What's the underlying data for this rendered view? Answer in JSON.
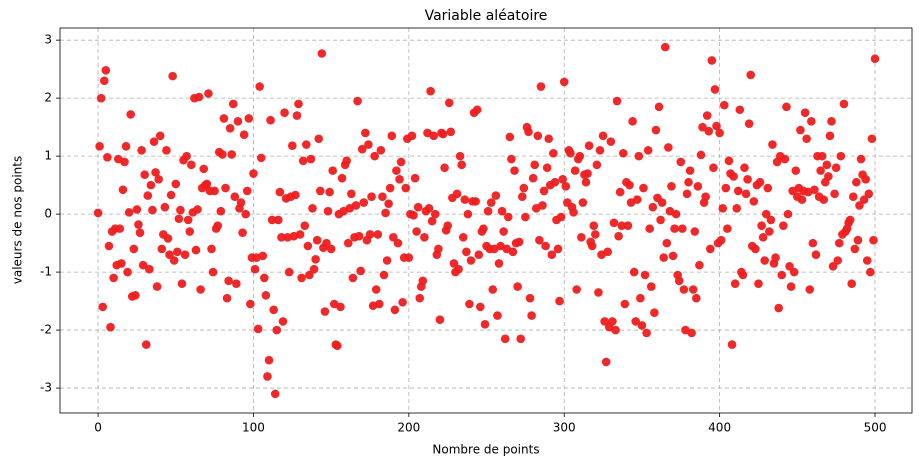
{
  "chart_data": {
    "type": "scatter",
    "title": "Variable aléatoire",
    "x_label": "Nombre de points",
    "y_label": "valeurs de nos points",
    "color": "#ee1d1d",
    "grid": true,
    "xlim": [
      -24.5,
      523.8
    ],
    "ylim": [
      -3.43,
      3.21
    ],
    "xticks": [
      0,
      100,
      200,
      300,
      400,
      500
    ],
    "yticks": [
      -3,
      -2,
      -1,
      0,
      1,
      2,
      3
    ],
    "x": [
      0,
      1,
      2,
      3,
      4,
      5,
      6,
      7,
      8,
      9,
      10,
      11,
      12,
      13,
      14,
      15,
      16,
      17,
      18,
      19,
      20,
      21,
      22,
      23,
      24,
      25,
      26,
      27,
      28,
      29,
      30,
      31,
      32,
      33,
      34,
      35,
      36,
      37,
      38,
      39,
      40,
      41,
      42,
      43,
      44,
      45,
      46,
      47,
      48,
      49,
      50,
      51,
      52,
      53,
      54,
      55,
      56,
      57,
      58,
      59,
      60,
      61,
      62,
      63,
      64,
      65,
      66,
      67,
      68,
      69,
      70,
      71,
      72,
      73,
      74,
      75,
      76,
      77,
      78,
      79,
      80,
      81,
      82,
      83,
      84,
      85,
      86,
      87,
      88,
      89,
      90,
      91,
      92,
      93,
      94,
      95,
      96,
      97,
      98,
      99,
      100,
      101,
      102,
      103,
      104,
      105,
      106,
      107,
      108,
      109,
      110,
      111,
      112,
      113,
      114,
      115,
      116,
      117,
      118,
      119,
      120,
      121,
      122,
      123,
      124,
      125,
      126,
      127,
      128,
      129,
      130,
      131,
      132,
      133,
      134,
      135,
      136,
      137,
      138,
      139,
      140,
      141,
      142,
      143,
      144,
      145,
      146,
      147,
      148,
      149,
      150,
      151,
      152,
      153,
      154,
      155,
      156,
      157,
      158,
      159,
      160,
      161,
      162,
      163,
      164,
      165,
      166,
      167,
      168,
      169,
      170,
      171,
      172,
      173,
      174,
      175,
      176,
      177,
      178,
      179,
      180,
      181,
      182,
      183,
      184,
      185,
      186,
      187,
      188,
      189,
      190,
      191,
      192,
      193,
      194,
      195,
      196,
      197,
      198,
      199,
      200,
      201,
      202,
      203,
      204,
      205,
      206,
      207,
      208,
      209,
      210,
      211,
      212,
      213,
      214,
      215,
      216,
      217,
      218,
      219,
      220,
      221,
      222,
      223,
      224,
      225,
      226,
      227,
      228,
      229,
      230,
      231,
      232,
      233,
      234,
      235,
      236,
      237,
      238,
      239,
      240,
      241,
      242,
      243,
      244,
      245,
      246,
      247,
      248,
      249,
      250,
      251,
      252,
      253,
      254,
      255,
      256,
      257,
      258,
      259,
      260,
      261,
      262,
      263,
      264,
      265,
      266,
      267,
      268,
      269,
      270,
      271,
      272,
      273,
      274,
      275,
      276,
      277,
      278,
      279,
      280,
      281,
      282,
      283,
      284,
      285,
      286,
      287,
      288,
      289,
      290,
      291,
      292,
      293,
      294,
      295,
      296,
      297,
      298,
      299,
      300,
      301,
      302,
      303,
      304,
      305,
      306,
      307,
      308,
      309,
      310,
      311,
      312,
      313,
      314,
      315,
      316,
      317,
      318,
      319,
      320,
      321,
      322,
      323,
      324,
      325,
      326,
      327,
      328,
      329,
      330,
      331,
      332,
      333,
      334,
      335,
      336,
      337,
      338,
      339,
      340,
      341,
      342,
      343,
      344,
      345,
      346,
      347,
      348,
      349,
      350,
      351,
      352,
      353,
      354,
      355,
      356,
      357,
      358,
      359,
      360,
      361,
      362,
      363,
      364,
      365,
      366,
      367,
      368,
      369,
      370,
      371,
      372,
      373,
      374,
      375,
      376,
      377,
      378,
      379,
      380,
      381,
      382,
      383,
      384,
      385,
      386,
      387,
      388,
      389,
      390,
      391,
      392,
      393,
      394,
      395,
      396,
      397,
      398,
      399,
      400,
      401,
      402,
      403,
      404,
      405,
      406,
      407,
      408,
      409,
      410,
      411,
      412,
      413,
      414,
      415,
      416,
      417,
      418,
      419,
      420,
      421,
      422,
      423,
      424,
      425,
      426,
      427,
      428,
      429,
      430,
      431,
      432,
      433,
      434,
      435,
      436,
      437,
      438,
      439,
      440,
      441,
      442,
      443,
      444,
      445,
      446,
      447,
      448,
      449,
      450,
      451,
      452,
      453,
      454,
      455,
      456,
      457,
      458,
      459,
      460,
      461,
      462,
      463,
      464,
      465,
      466,
      467,
      468,
      469,
      470,
      471,
      472,
      473,
      474,
      475,
      476,
      477,
      478,
      479,
      480,
      481,
      482,
      483,
      484,
      485,
      486,
      487,
      488,
      489,
      490,
      491,
      492,
      493,
      494,
      495,
      496,
      497,
      498,
      499,
      500
    ],
    "values": [
      0.02,
      1.17,
      2.0,
      -1.6,
      2.3,
      2.48,
      0.98,
      -0.55,
      -1.95,
      -0.3,
      -1.1,
      -0.25,
      -0.88,
      0.95,
      -0.25,
      -0.85,
      0.42,
      0.9,
      1.17,
      -1.0,
      0.03,
      1.72,
      -1.42,
      -0.6,
      -1.4,
      0.08,
      -0.18,
      -0.32,
      1.1,
      -0.88,
      0.68,
      -2.25,
      0.32,
      -0.95,
      0.5,
      0.07,
      1.25,
      0.72,
      -1.25,
      0.6,
      1.35,
      -0.6,
      -0.35,
      0.12,
      1.1,
      -0.42,
      -0.7,
      0.33,
      2.38,
      -0.8,
      0.52,
      -0.65,
      -0.08,
      0.07,
      -1.2,
      0.93,
      -0.7,
      1.0,
      -0.1,
      -0.3,
      0.85,
      0.03,
      2.0,
      -0.62,
      0.08,
      2.02,
      -1.3,
      0.45,
      0.78,
      0.5,
      0.52,
      2.08,
      0.4,
      -0.6,
      -1.0,
      0.4,
      -0.25,
      -0.2,
      1.07,
      0.05,
      1.03,
      1.65,
      0.45,
      -1.45,
      -1.15,
      1.48,
      1.03,
      1.9,
      0.3,
      -1.2,
      1.6,
      0.1,
      0.2,
      -0.32,
      1.37,
      0.0,
      0.4,
      1.65,
      -1.55,
      -0.75,
      0.7,
      -0.95,
      -0.75,
      -1.98,
      2.2,
      0.97,
      -0.72,
      -1.1,
      -1.4,
      -2.8,
      -2.52,
      1.62,
      -0.1,
      -1.65,
      -3.1,
      -2.0,
      -0.1,
      0.38,
      -0.4,
      -1.85,
      1.75,
      0.27,
      -0.4,
      -1.0,
      0.3,
      1.18,
      -0.38,
      0.33,
      1.7,
      1.9,
      -0.35,
      -1.1,
      0.92,
      -0.2,
      1.2,
      -0.55,
      -1.05,
      0.95,
      0.1,
      -0.95,
      -0.78,
      -0.45,
      1.3,
      0.4,
      2.77,
      -0.58,
      -1.68,
      -0.5,
      0.05,
      0.38,
      -0.6,
      0.75,
      -1.55,
      -2.25,
      -2.27,
      0.0,
      -1.6,
      0.62,
      0.05,
      0.85,
      0.92,
      -0.5,
      0.1,
      0.35,
      -1.1,
      -0.4,
      0.15,
      1.95,
      -0.38,
      -0.98,
      1.12,
      0.2,
      1.4,
      -0.45,
      1.2,
      -0.35,
      0.3,
      -1.58,
      1.0,
      -1.3,
      -0.35,
      -1.55,
      1.1,
      0.3,
      -1.05,
      0.02,
      -0.8,
      0.18,
      0.45,
      1.35,
      -0.4,
      -1.65,
      0.75,
      -0.5,
      0.6,
      0.9,
      -1.52,
      -0.75,
      0.45,
      1.3,
      -0.75,
      0.0,
      1.35,
      -0.02,
      0.62,
      -0.3,
      0.12,
      -1.45,
      -1.25,
      -1.15,
      -0.4,
      0.05,
      1.4,
      0.1,
      2.12,
      -0.12,
      1.35,
      0.0,
      -0.7,
      -0.6,
      -1.82,
      1.4,
      1.38,
      0.8,
      -0.28,
      -0.2,
      1.92,
      1.42,
      0.28,
      -0.85,
      -1.0,
      0.35,
      -0.95,
      1.0,
      0.85,
      -0.4,
      0.25,
      -0.65,
      0.0,
      -1.55,
      -0.8,
      0.22,
      1.75,
      0.22,
      1.8,
      -0.7,
      -1.6,
      -0.3,
      -0.25,
      -1.9,
      -0.55,
      0.05,
      -0.6,
      0.2,
      -1.3,
      -0.6,
      0.32,
      -1.75,
      -0.85,
      -0.55,
      0.05,
      -0.3,
      -2.15,
      -0.6,
      -0.05,
      1.33,
      0.95,
      -0.65,
      0.75,
      -0.5,
      -1.25,
      -0.48,
      -2.15,
      0.3,
      0.45,
      -0.05,
      1.5,
      1.42,
      -1.45,
      -1.75,
      0.62,
      0.85,
      0.1,
      1.35,
      -0.45,
      2.2,
      0.15,
      0.4,
      -0.55,
      0.8,
      1.3,
      0.5,
      -0.7,
      1.05,
      0.55,
      -0.1,
      -0.6,
      -1.5,
      -0.05,
      0.6,
      2.28,
      0.48,
      0.2,
      1.1,
      1.05,
      0.12,
      0.03,
      0.75,
      -1.3,
      0.95,
      1.0,
      -0.4,
      0.2,
      0.68,
      0.55,
      0.7,
      1.18,
      -0.48,
      -0.55,
      -0.2,
      -0.35,
      0.85,
      -1.35,
      1.1,
      -0.7,
      1.35,
      -1.85,
      -2.55,
      -0.65,
      -1.95,
      1.25,
      -1.85,
      -0.15,
      -2.0,
      1.95,
      -0.38,
      0.38,
      -0.2,
      1.05,
      -1.55,
      0.55,
      -0.2,
      0.5,
      0.2,
      1.6,
      -1.0,
      -1.85,
      0.25,
      1.0,
      -1.45,
      -1.92,
      0.45,
      -1.05,
      -2.05,
      1.1,
      -0.25,
      -1.25,
      0.12,
      -1.7,
      1.45,
      0.28,
      1.85,
      -0.1,
      0.2,
      -0.75,
      2.88,
      -0.5,
      1.15,
      0.05,
      0.48,
      -0.72,
      -0.25,
      0.0,
      -1.05,
      -1.15,
      0.9,
      -0.25,
      -1.3,
      -2.0,
      0.35,
      0.55,
      0.75,
      -2.05,
      -1.3,
      -0.3,
      -1.45,
      0.48,
      -0.88,
      1.02,
      1.5,
      0.2,
      0.3,
      1.7,
      1.43,
      -0.6,
      2.65,
      0.8,
      2.15,
      1.52,
      -0.5,
      1.4,
      -0.45,
      0.1,
      1.88,
      0.45,
      -0.25,
      0.92,
      0.7,
      -2.25,
      0.65,
      -1.2,
      0.1,
      0.4,
      1.8,
      -1.0,
      -1.05,
      0.8,
      0.35,
      0.6,
      1.56,
      2.4,
      -0.55,
      0.22,
      -0.6,
      0.5,
      -1.2,
      0.55,
      -0.2,
      -0.4,
      -0.8,
      0.0,
      0.45,
      -0.3,
      -0.1,
      1.2,
      -0.85,
      -0.75,
      0.9,
      -1.62,
      1.0,
      -1.05,
      -0.2,
      0.95,
      1.85,
      0.0,
      -0.9,
      -1.25,
      0.4,
      -1.0,
      0.75,
      0.3,
      0.45,
      1.45,
      0.25,
      0.4,
      1.75,
      1.3,
      0.38,
      -1.3,
      1.6,
      -0.5,
      0.42,
      -0.7,
      1.0,
      0.3,
      0.75,
      1.0,
      0.25,
      0.55,
      0.85,
      0.65,
      1.35,
      1.6,
      -0.9,
      0.35,
      0.8,
      -0.8,
      -0.5,
      1.0,
      -0.35,
      1.9,
      -0.3,
      -0.25,
      -0.15,
      -0.1,
      -1.2,
      0.3,
      -0.6,
      0.55,
      -0.45,
      0.15,
      0.95,
      0.68,
      0.25,
      0.6,
      -0.8,
      0.35,
      -1.0,
      1.3,
      -0.45,
      2.68
    ]
  }
}
